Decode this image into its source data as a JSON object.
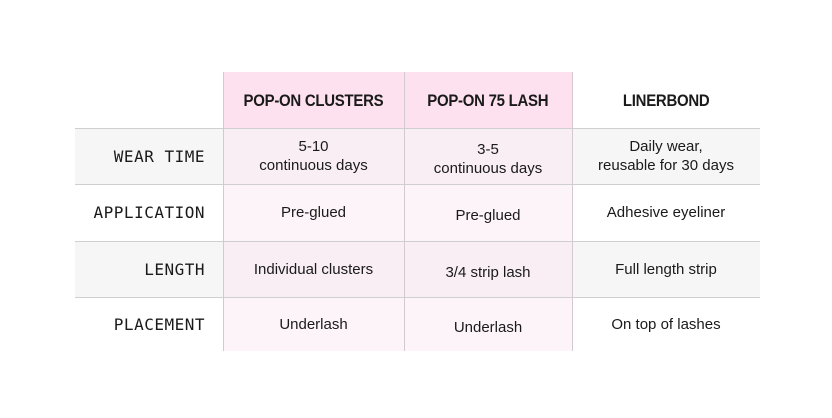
{
  "colors": {
    "header_pink": "#fde1ef",
    "body_pink": "#fdf4f9",
    "body_pink_shaded": "#f8eef3",
    "row_shade": "#f6f6f6",
    "divider": "#cfcfcf"
  },
  "columns": [
    "POP-ON CLUSTERS",
    "POP-ON 75 LASH",
    "LINERBOND"
  ],
  "rows": [
    {
      "label": "WEAR TIME",
      "cells": [
        [
          "5-10",
          "continuous days"
        ],
        [
          "3-5",
          "continuous days"
        ],
        [
          "Daily wear,",
          "reusable for 30 days"
        ]
      ]
    },
    {
      "label": "APPLICATION",
      "cells": [
        [
          "Pre-glued"
        ],
        [
          "Pre-glued"
        ],
        [
          "Adhesive eyeliner"
        ]
      ]
    },
    {
      "label": "LENGTH",
      "cells": [
        [
          "Individual clusters"
        ],
        [
          "3/4 strip lash"
        ],
        [
          "Full length strip"
        ]
      ]
    },
    {
      "label": "PLACEMENT",
      "cells": [
        [
          "Underlash"
        ],
        [
          "Underlash"
        ],
        [
          "On top of lashes"
        ]
      ]
    }
  ]
}
